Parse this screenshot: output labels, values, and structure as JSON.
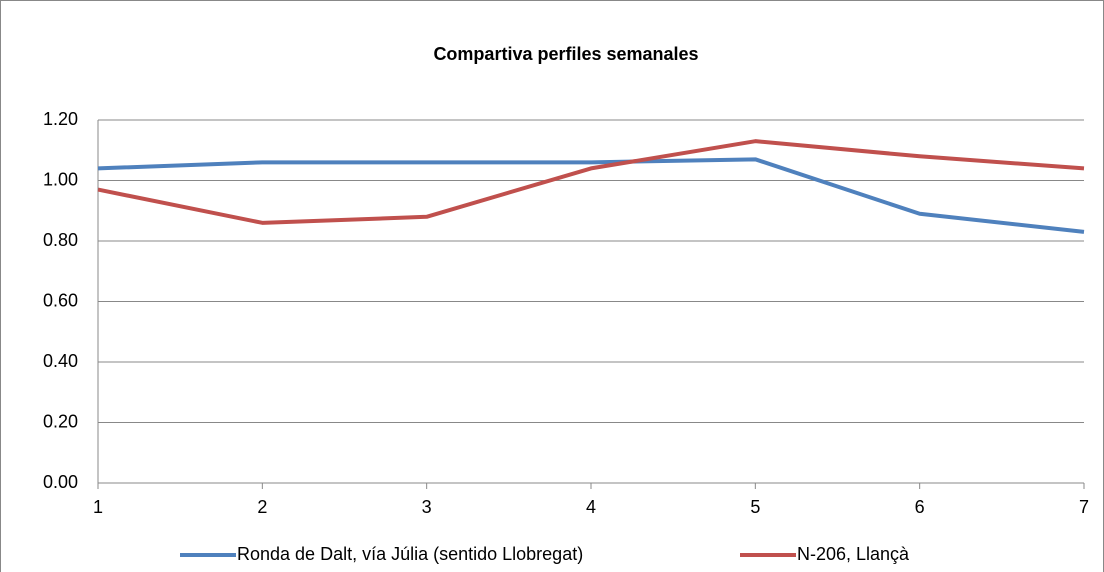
{
  "chart_data": {
    "type": "line",
    "title": "Compartiva perfiles semanales",
    "x": [
      1,
      2,
      3,
      4,
      5,
      6,
      7
    ],
    "series": [
      {
        "name": "Ronda de Dalt, vía Júlia (sentido Llobregat)",
        "color": "#4f81bd",
        "values": [
          1.04,
          1.06,
          1.06,
          1.06,
          1.07,
          0.89,
          0.83
        ]
      },
      {
        "name": "N-206, Llançà",
        "color": "#c0504d",
        "values": [
          0.97,
          0.86,
          0.88,
          1.04,
          1.13,
          1.08,
          1.04
        ]
      }
    ],
    "xlim": [
      1,
      7
    ],
    "xticks": [
      1,
      2,
      3,
      4,
      5,
      6,
      7
    ],
    "ylim": [
      0,
      1.2
    ],
    "yticks": [
      {
        "value": 0,
        "label": "0.00"
      },
      {
        "value": 0.2,
        "label": "0.20"
      },
      {
        "value": 0.4,
        "label": "0.40"
      },
      {
        "value": 0.6,
        "label": "0.60"
      },
      {
        "value": 0.8,
        "label": "0.80"
      },
      {
        "value": 1,
        "label": "1.00"
      },
      {
        "value": 1.2,
        "label": "1.20"
      }
    ],
    "grid": true,
    "legend": "bottom"
  }
}
